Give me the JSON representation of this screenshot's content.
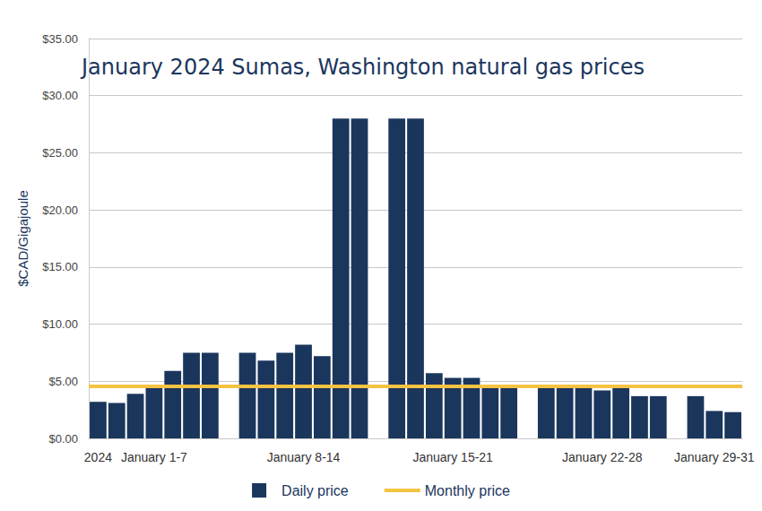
{
  "chart_data": {
    "type": "bar",
    "title": "January 2024 Sumas, Washington natural gas prices",
    "y_label": "$CAD/Gigajoule",
    "categories": [
      "2024",
      null,
      null,
      "January 1-7",
      null,
      null,
      null,
      null,
      null,
      null,
      null,
      "January 8-14",
      null,
      null,
      null,
      null,
      null,
      null,
      null,
      "January 15-21",
      null,
      null,
      null,
      null,
      null,
      null,
      null,
      "January 22-28",
      null,
      null,
      null,
      null,
      null,
      "January 29-31",
      null
    ],
    "series": [
      {
        "name": "Daily price",
        "type": "bar",
        "color": "#1b365d",
        "values": [
          3.2,
          3.1,
          3.9,
          4.5,
          5.9,
          7.5,
          7.5,
          null,
          7.5,
          6.8,
          7.5,
          8.2,
          7.2,
          28.0,
          28.0,
          null,
          28.0,
          28.0,
          5.7,
          5.3,
          5.3,
          4.7,
          4.7,
          null,
          4.6,
          4.4,
          4.6,
          4.2,
          4.6,
          3.7,
          3.7,
          null,
          3.7,
          2.4,
          2.3
        ]
      },
      {
        "name": "Monthly price",
        "type": "line",
        "color": "#f5c342",
        "y": 4.6
      }
    ],
    "ylim": [
      0,
      35
    ],
    "yticks": [
      {
        "value": 0,
        "label": "$0.00"
      },
      {
        "value": 5,
        "label": "$5.00"
      },
      {
        "value": 10,
        "label": "$10.00"
      },
      {
        "value": 15,
        "label": "$15.00"
      },
      {
        "value": 20,
        "label": "$20.00"
      },
      {
        "value": 25,
        "label": "$25.00"
      },
      {
        "value": 30,
        "label": "$30.00"
      },
      {
        "value": 35,
        "label": "$35.00"
      }
    ],
    "grid": true,
    "legend": "bottom"
  }
}
